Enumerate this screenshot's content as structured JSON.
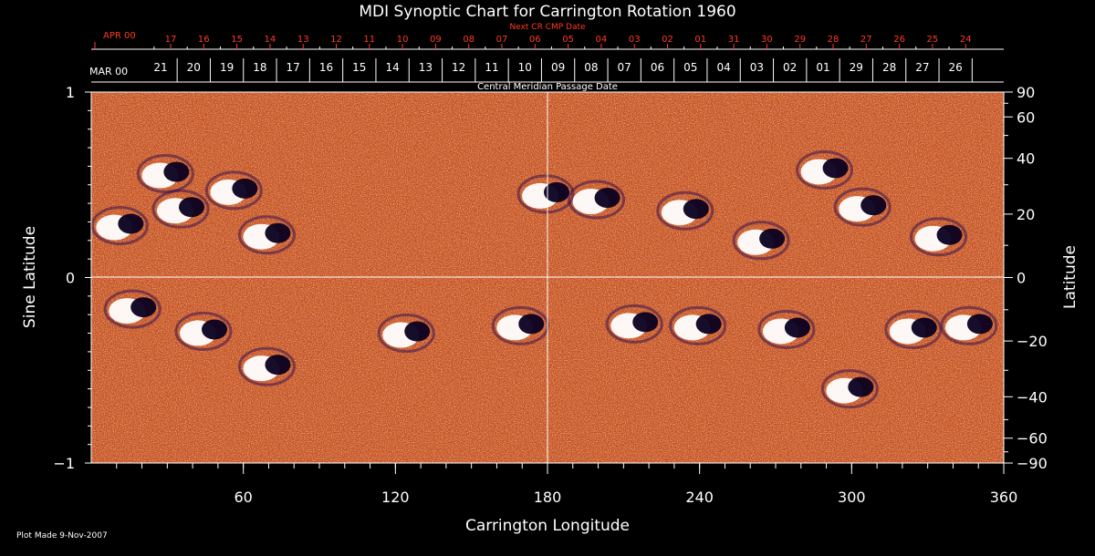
{
  "chart_data": {
    "type": "heatmap",
    "title": "MDI Synoptic Chart for Carrington Rotation 1960",
    "xlabel": "Carrington Longitude",
    "ylabel_left": "Sine Latitude",
    "ylabel_right": "Latitude",
    "xlim": [
      0,
      360
    ],
    "ylim": [
      -1,
      1
    ],
    "x_ticks": [
      "60",
      "120",
      "180",
      "240",
      "300",
      "360"
    ],
    "y_ticks_left": [
      "1",
      "0",
      "−1"
    ],
    "y_ticks_right": [
      "90",
      "60",
      "40",
      "20",
      "0",
      "−20",
      "−40",
      "−60",
      "−90"
    ],
    "y_ticks_right_values": [
      90,
      60,
      40,
      20,
      0,
      -20,
      -40,
      -60,
      -90
    ],
    "next_cr_axis": {
      "label": "Next CR CMP Date",
      "month_label": "APR 00",
      "dates": [
        "17",
        "16",
        "15",
        "14",
        "13",
        "12",
        "11",
        "10",
        "09",
        "08",
        "07",
        "06",
        "05",
        "04",
        "03",
        "02",
        "01",
        "31",
        "30",
        "29",
        "28",
        "27",
        "26",
        "25",
        "24"
      ]
    },
    "cmp_axis": {
      "label": "Central Meridian Passage Date",
      "month_label": "MAR 00",
      "dates": [
        "21",
        "20",
        "19",
        "18",
        "17",
        "16",
        "15",
        "14",
        "13",
        "12",
        "11",
        "10",
        "09",
        "08",
        "07",
        "06",
        "05",
        "04",
        "03",
        "02",
        "01",
        "29",
        "28",
        "27",
        "26"
      ]
    },
    "active_regions": [
      {
        "lon": 30,
        "sinlat": 0.56
      },
      {
        "lon": 36,
        "sinlat": 0.37
      },
      {
        "lon": 57,
        "sinlat": 0.47
      },
      {
        "lon": 70,
        "sinlat": 0.23
      },
      {
        "lon": 12,
        "sinlat": 0.28
      },
      {
        "lon": 180,
        "sinlat": 0.45
      },
      {
        "lon": 200,
        "sinlat": 0.42
      },
      {
        "lon": 235,
        "sinlat": 0.36
      },
      {
        "lon": 290,
        "sinlat": 0.58
      },
      {
        "lon": 305,
        "sinlat": 0.38
      },
      {
        "lon": 265,
        "sinlat": 0.2
      },
      {
        "lon": 335,
        "sinlat": 0.22
      },
      {
        "lon": 17,
        "sinlat": -0.17
      },
      {
        "lon": 45,
        "sinlat": -0.29
      },
      {
        "lon": 70,
        "sinlat": -0.48
      },
      {
        "lon": 125,
        "sinlat": -0.3
      },
      {
        "lon": 170,
        "sinlat": -0.26
      },
      {
        "lon": 215,
        "sinlat": -0.25
      },
      {
        "lon": 240,
        "sinlat": -0.26
      },
      {
        "lon": 275,
        "sinlat": -0.28
      },
      {
        "lon": 325,
        "sinlat": -0.28
      },
      {
        "lon": 347,
        "sinlat": -0.26
      },
      {
        "lon": 300,
        "sinlat": -0.6
      }
    ]
  },
  "footer": {
    "plot_made": "Plot Made  9-Nov-2007"
  },
  "colors": {
    "background": "#000000",
    "axis": "#ffffff",
    "next_cr_text": "#ff3b1f",
    "map_base": "#c8501a"
  }
}
